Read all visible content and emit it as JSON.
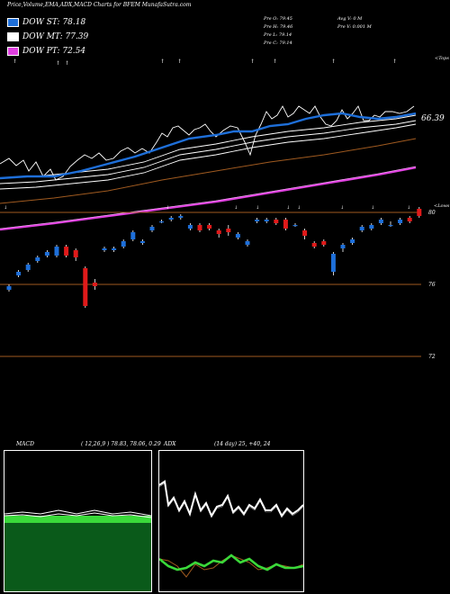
{
  "header": {
    "title": "Price,Volume,EMA,ADX,MACD Charts for BFEM MunafaSutra.com"
  },
  "legend": [
    {
      "label": "DOW ST: 78.18",
      "color": "#1e6fd9"
    },
    {
      "label": "DOW MT: 77.39",
      "color": "#ffffff"
    },
    {
      "label": "DOW PT: 72.54",
      "color": "#e040e0"
    }
  ],
  "ohlc": {
    "open": "Pre  O: 79.45",
    "high": "Pre  H: 79.46",
    "low": "Pre  L: 79.14",
    "close": "Pre  C: 79.14"
  },
  "volume": {
    "avg": "Avg V: 0  M",
    "pre": "Pre  V: 0.001 M"
  },
  "labels": {
    "tops": "<Tops",
    "lows": "<Lows",
    "ema_value": "66.39"
  },
  "price_axis": {
    "ticks": [
      "80",
      "76",
      "72"
    ]
  },
  "macd": {
    "label": "MACD",
    "values": "( 12,26,9 ) 78.83, 78.06, 0.29"
  },
  "adx": {
    "label": "ADX",
    "values": "(14 day) 25, +40, 24"
  },
  "chart_data": [
    {
      "type": "candlestick",
      "title": "",
      "ylim": [
        71,
        81
      ],
      "yticks": [
        80,
        76,
        72
      ],
      "candles": [
        {
          "o": 75.7,
          "c": 75.9,
          "h": 76.0,
          "l": 75.6,
          "up": true
        },
        {
          "o": 76.5,
          "c": 76.7,
          "h": 76.8,
          "l": 76.4,
          "up": true
        },
        {
          "o": 76.8,
          "c": 77.1,
          "h": 77.2,
          "l": 76.7,
          "up": true
        },
        {
          "o": 77.3,
          "c": 77.5,
          "h": 77.6,
          "l": 77.2,
          "up": true
        },
        {
          "o": 77.6,
          "c": 77.8,
          "h": 77.9,
          "l": 77.5,
          "up": true
        },
        {
          "o": 77.6,
          "c": 78.1,
          "h": 78.2,
          "l": 77.5,
          "up": true
        },
        {
          "o": 78.1,
          "c": 77.6,
          "h": 78.2,
          "l": 77.5,
          "up": false
        },
        {
          "o": 77.9,
          "c": 77.5,
          "h": 78.0,
          "l": 77.3,
          "up": false
        },
        {
          "o": 76.9,
          "c": 74.8,
          "h": 77.0,
          "l": 74.7,
          "up": false
        },
        {
          "o": 76.1,
          "c": 75.9,
          "h": 76.3,
          "l": 75.7,
          "up": false
        },
        {
          "o": 77.9,
          "c": 78.0,
          "h": 78.1,
          "l": 77.8,
          "up": true
        },
        {
          "o": 77.9,
          "c": 78.0,
          "h": 78.1,
          "l": 77.8,
          "up": true
        },
        {
          "o": 78.1,
          "c": 78.4,
          "h": 78.5,
          "l": 78.0,
          "up": true
        },
        {
          "o": 78.5,
          "c": 78.9,
          "h": 79.0,
          "l": 78.4,
          "up": true
        },
        {
          "o": 78.3,
          "c": 78.4,
          "h": 78.5,
          "l": 78.2,
          "up": true
        },
        {
          "o": 79.0,
          "c": 79.2,
          "h": 79.3,
          "l": 78.9,
          "up": true
        },
        {
          "o": 79.5,
          "c": 79.5,
          "h": 79.6,
          "l": 79.4,
          "up": true
        },
        {
          "o": 79.6,
          "c": 79.7,
          "h": 79.8,
          "l": 79.5,
          "up": true
        },
        {
          "o": 79.7,
          "c": 79.8,
          "h": 79.9,
          "l": 79.6,
          "up": true
        },
        {
          "o": 79.1,
          "c": 79.3,
          "h": 79.4,
          "l": 79.0,
          "up": true
        },
        {
          "o": 79.3,
          "c": 79.0,
          "h": 79.4,
          "l": 78.9,
          "up": false
        },
        {
          "o": 79.3,
          "c": 79.1,
          "h": 79.4,
          "l": 79.0,
          "up": false
        },
        {
          "o": 79.0,
          "c": 78.8,
          "h": 79.1,
          "l": 78.6,
          "up": false
        },
        {
          "o": 79.1,
          "c": 78.9,
          "h": 79.3,
          "l": 78.7,
          "up": false
        },
        {
          "o": 78.6,
          "c": 78.8,
          "h": 78.9,
          "l": 78.5,
          "up": true
        },
        {
          "o": 78.2,
          "c": 78.4,
          "h": 78.5,
          "l": 78.1,
          "up": true
        },
        {
          "o": 79.5,
          "c": 79.6,
          "h": 79.7,
          "l": 79.4,
          "up": true
        },
        {
          "o": 79.5,
          "c": 79.6,
          "h": 79.7,
          "l": 79.4,
          "up": true
        },
        {
          "o": 79.6,
          "c": 79.4,
          "h": 79.7,
          "l": 79.3,
          "up": false
        },
        {
          "o": 79.6,
          "c": 79.1,
          "h": 79.7,
          "l": 79.0,
          "up": false
        },
        {
          "o": 79.3,
          "c": 79.3,
          "h": 79.4,
          "l": 79.2,
          "up": true
        },
        {
          "o": 79.0,
          "c": 78.7,
          "h": 79.1,
          "l": 78.5,
          "up": false
        },
        {
          "o": 78.3,
          "c": 78.1,
          "h": 78.4,
          "l": 78.0,
          "up": false
        },
        {
          "o": 78.4,
          "c": 78.2,
          "h": 78.5,
          "l": 78.1,
          "up": false
        },
        {
          "o": 76.7,
          "c": 77.7,
          "h": 77.8,
          "l": 76.5,
          "up": true
        },
        {
          "o": 78.0,
          "c": 78.2,
          "h": 78.3,
          "l": 77.8,
          "up": true
        },
        {
          "o": 78.3,
          "c": 78.5,
          "h": 78.6,
          "l": 78.2,
          "up": true
        },
        {
          "o": 79.0,
          "c": 79.2,
          "h": 79.3,
          "l": 78.9,
          "up": true
        },
        {
          "o": 79.1,
          "c": 79.3,
          "h": 79.4,
          "l": 79.0,
          "up": true
        },
        {
          "o": 79.4,
          "c": 79.6,
          "h": 79.7,
          "l": 79.3,
          "up": true
        },
        {
          "o": 79.3,
          "c": 79.3,
          "h": 79.5,
          "l": 79.2,
          "up": true
        },
        {
          "o": 79.4,
          "c": 79.6,
          "h": 79.7,
          "l": 79.3,
          "up": true
        },
        {
          "o": 79.7,
          "c": 79.5,
          "h": 79.8,
          "l": 79.4,
          "up": false
        },
        {
          "o": 80.2,
          "c": 79.8,
          "h": 80.3,
          "l": 79.7,
          "up": false
        }
      ]
    }
  ]
}
